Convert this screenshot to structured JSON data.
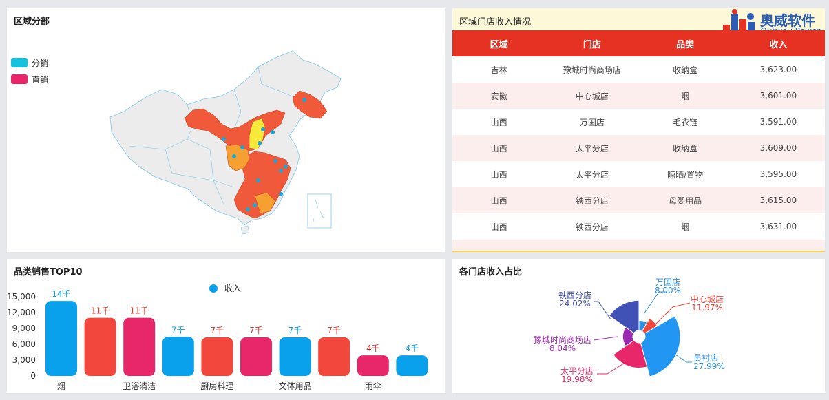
{
  "map_panel": {
    "title": "区域分部",
    "legend": [
      {
        "label": "分销",
        "color": "#18c2dd"
      },
      {
        "label": "直销",
        "color": "#e8276a"
      }
    ]
  },
  "table_panel": {
    "title": "区域门店收入情况",
    "logo_main": "奥威软件",
    "logo_sub": "Ourway Power",
    "headers": [
      "区域",
      "门店",
      "品类",
      "收入"
    ],
    "rows": [
      [
        "吉林",
        "豫城时尚商场店",
        "收纳盒",
        "3,623.00"
      ],
      [
        "安徽",
        "中心城店",
        "烟",
        "3,601.00"
      ],
      [
        "山西",
        "万国店",
        "毛衣链",
        "3,591.00"
      ],
      [
        "山西",
        "太平分店",
        "收纳盒",
        "3,609.00"
      ],
      [
        "山西",
        "太平分店",
        "晾晒/置物",
        "3,595.00"
      ],
      [
        "山西",
        "铁西分店",
        "母婴用品",
        "3,615.00"
      ],
      [
        "山西",
        "铁西分店",
        "烟",
        "3,631.00"
      ]
    ]
  },
  "bar_panel": {
    "title": "品类销售TOP10",
    "legend_label": "收入"
  },
  "pie_panel": {
    "title": "各门店收入占比"
  },
  "chart_data": [
    {
      "type": "bar",
      "title": "品类销售TOP10",
      "series": [
        {
          "name": "收入",
          "values": [
            14200,
            11000,
            11000,
            7400,
            7300,
            7300,
            7300,
            7300,
            3900,
            3900
          ]
        }
      ],
      "data_labels": [
        "14千",
        "11千",
        "11千",
        "7千",
        "7千",
        "7千",
        "7千",
        "7千",
        "4千",
        "4千"
      ],
      "x_tick_labels": [
        "烟",
        "",
        "卫浴清洁",
        "",
        "厨房料理",
        "",
        "文体用品",
        "",
        "雨伞",
        ""
      ],
      "bar_colors": [
        "#0aa1ec",
        "#f2473c",
        "#e8276a",
        "#0aa1ec",
        "#f2473c",
        "#e8276a",
        "#0aa1ec",
        "#f2473c",
        "#e8276a",
        "#0aa1ec"
      ],
      "label_colors": [
        "#0aa1ec",
        "#d93a30",
        "#d93a30",
        "#0aa1ec",
        "#d93a30",
        "#d93a30",
        "#0aa1ec",
        "#d93a30",
        "#d93a30",
        "#0aa1ec"
      ],
      "yticks": [
        "0",
        "3,000",
        "6,000",
        "9,000",
        "12,000",
        "15,000"
      ],
      "ylim": [
        0,
        15000
      ],
      "legend": "top-center"
    },
    {
      "type": "pie",
      "title": "各门店收入占比",
      "slices": [
        {
          "name": "万国店",
          "pct": "8.00%",
          "value": 8.0,
          "color": "#2f8fe0"
        },
        {
          "name": "中心城店",
          "pct": "11.97%",
          "value": 11.97,
          "color": "#f2473c"
        },
        {
          "name": "员村店",
          "pct": "27.99%",
          "value": 27.99,
          "color": "#2196f3"
        },
        {
          "name": "太平分店",
          "pct": "19.98%",
          "value": 19.98,
          "color": "#e8276a"
        },
        {
          "name": "豫城时尚商场店",
          "pct": "8.04%",
          "value": 8.04,
          "color": "#9c27b0"
        },
        {
          "name": "铁西分店",
          "pct": "24.02%",
          "value": 24.02,
          "color": "#3f51b5"
        }
      ],
      "label_colors": [
        "#2f8fe0",
        "#e8453a",
        "#2f8fe0",
        "#e8276a",
        "#9c27b0",
        "#3f51b5"
      ],
      "legend": "none"
    }
  ]
}
